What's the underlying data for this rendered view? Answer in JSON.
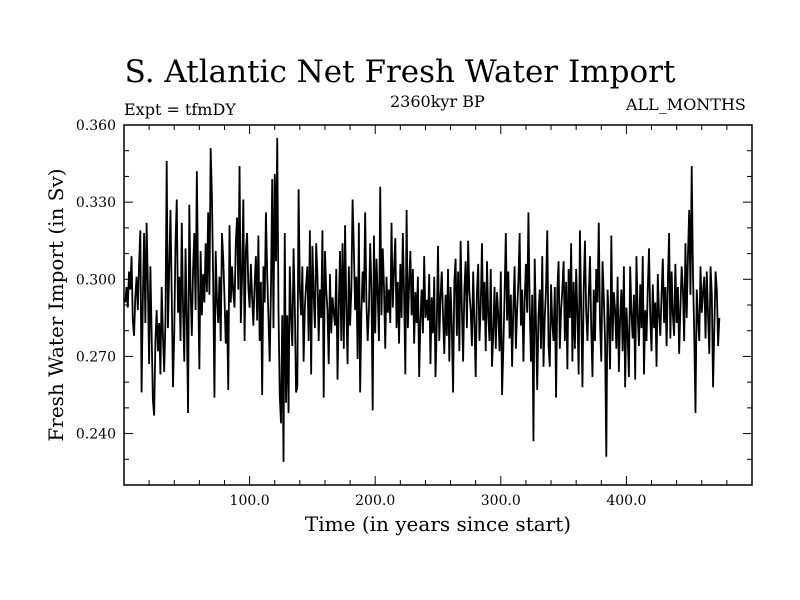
{
  "header": {
    "title": "S. Atlantic Net Fresh Water Import",
    "experiment": "Expt = tfmDY",
    "subtitle": "2360kyr BP",
    "period": "ALL_MONTHS"
  },
  "chart_data": {
    "type": "line",
    "title": "S. Atlantic Net Fresh Water Import",
    "xlabel": "Time (in years since start)",
    "ylabel": "Fresh Water Import (in Sv)",
    "xlim": [
      0,
      500
    ],
    "ylim": [
      0.22,
      0.36
    ],
    "x_ticks": [
      100.0,
      200.0,
      300.0,
      400.0
    ],
    "x_tick_labels": [
      "100.0",
      "200.0",
      "300.0",
      "400.0"
    ],
    "y_ticks": [
      0.24,
      0.27,
      0.3,
      0.33,
      0.36
    ],
    "y_tick_labels": [
      "0.240",
      "0.270",
      "0.300",
      "0.330",
      "0.360"
    ],
    "grid": false,
    "series": [
      {
        "name": "Net fresh water import",
        "color": "#000000",
        "x_start": 1,
        "x_step": 1,
        "values": [
          0.291,
          0.297,
          0.289,
          0.303,
          0.296,
          0.309,
          0.284,
          0.278,
          0.293,
          0.301,
          0.288,
          0.306,
          0.319,
          0.256,
          0.292,
          0.318,
          0.283,
          0.322,
          0.298,
          0.267,
          0.305,
          0.279,
          0.253,
          0.247,
          0.276,
          0.288,
          0.272,
          0.283,
          0.263,
          0.297,
          0.278,
          0.264,
          0.284,
          0.346,
          0.281,
          0.304,
          0.327,
          0.294,
          0.258,
          0.279,
          0.314,
          0.331,
          0.287,
          0.301,
          0.276,
          0.322,
          0.289,
          0.268,
          0.312,
          0.285,
          0.248,
          0.329,
          0.296,
          0.278,
          0.304,
          0.318,
          0.288,
          0.342,
          0.299,
          0.265,
          0.311,
          0.286,
          0.302,
          0.291,
          0.314,
          0.295,
          0.326,
          0.294,
          0.351,
          0.332,
          0.299,
          0.254,
          0.311,
          0.292,
          0.283,
          0.301,
          0.276,
          0.318,
          0.308,
          0.293,
          0.275,
          0.288,
          0.257,
          0.321,
          0.291,
          0.305,
          0.295,
          0.289,
          0.314,
          0.324,
          0.296,
          0.344,
          0.283,
          0.301,
          0.331,
          0.276,
          0.311,
          0.318,
          0.297,
          0.289,
          0.306,
          0.293,
          0.282,
          0.298,
          0.309,
          0.284,
          0.317,
          0.276,
          0.299,
          0.255,
          0.305,
          0.291,
          0.326,
          0.302,
          0.285,
          0.268,
          0.296,
          0.339,
          0.281,
          0.341,
          0.307,
          0.355,
          0.288,
          0.255,
          0.244,
          0.286,
          0.229,
          0.318,
          0.252,
          0.286,
          0.248,
          0.305,
          0.286,
          0.274,
          0.312,
          0.289,
          0.256,
          0.258,
          0.335,
          0.296,
          0.286,
          0.305,
          0.268,
          0.289,
          0.298,
          0.305,
          0.276,
          0.319,
          0.263,
          0.313,
          0.294,
          0.281,
          0.314,
          0.302,
          0.276,
          0.296,
          0.285,
          0.319,
          0.254,
          0.311,
          0.296,
          0.288,
          0.267,
          0.302,
          0.279,
          0.293,
          0.287,
          0.282,
          0.304,
          0.261,
          0.289,
          0.311,
          0.276,
          0.314,
          0.273,
          0.321,
          0.289,
          0.267,
          0.305,
          0.282,
          0.296,
          0.331,
          0.312,
          0.288,
          0.301,
          0.269,
          0.322,
          0.256,
          0.287,
          0.303,
          0.291,
          0.326,
          0.291,
          0.276,
          0.288,
          0.314,
          0.296,
          0.249,
          0.317,
          0.279,
          0.308,
          0.294,
          0.276,
          0.336,
          0.286,
          0.312,
          0.297,
          0.273,
          0.301,
          0.287,
          0.296,
          0.283,
          0.322,
          0.289,
          0.304,
          0.316,
          0.281,
          0.299,
          0.275,
          0.306,
          0.285,
          0.318,
          0.294,
          0.263,
          0.327,
          0.281,
          0.298,
          0.311,
          0.286,
          0.304,
          0.275,
          0.295,
          0.283,
          0.301,
          0.262,
          0.284,
          0.296,
          0.279,
          0.309,
          0.285,
          0.292,
          0.284,
          0.302,
          0.267,
          0.293,
          0.279,
          0.301,
          0.262,
          0.281,
          0.313,
          0.276,
          0.293,
          0.303,
          0.286,
          0.271,
          0.294,
          0.278,
          0.304,
          0.268,
          0.297,
          0.282,
          0.256,
          0.299,
          0.308,
          0.278,
          0.303,
          0.272,
          0.315,
          0.289,
          0.268,
          0.296,
          0.307,
          0.281,
          0.315,
          0.295,
          0.288,
          0.274,
          0.303,
          0.283,
          0.262,
          0.295,
          0.306,
          0.276,
          0.289,
          0.314,
          0.284,
          0.299,
          0.272,
          0.307,
          0.286,
          0.276,
          0.304,
          0.266,
          0.279,
          0.297,
          0.273,
          0.295,
          0.286,
          0.272,
          0.303,
          0.255,
          0.273,
          0.294,
          0.318,
          0.284,
          0.303,
          0.277,
          0.294,
          0.266,
          0.289,
          0.305,
          0.273,
          0.288,
          0.299,
          0.318,
          0.282,
          0.296,
          0.268,
          0.292,
          0.306,
          0.287,
          0.326,
          0.289,
          0.268,
          0.294,
          0.237,
          0.308,
          0.283,
          0.257,
          0.286,
          0.296,
          0.273,
          0.309,
          0.266,
          0.285,
          0.296,
          0.319,
          0.274,
          0.266,
          0.298,
          0.283,
          0.276,
          0.297,
          0.254,
          0.296,
          0.307,
          0.273,
          0.288,
          0.296,
          0.307,
          0.276,
          0.299,
          0.265,
          0.304,
          0.285,
          0.314,
          0.268,
          0.299,
          0.273,
          0.304,
          0.286,
          0.263,
          0.319,
          0.289,
          0.258,
          0.296,
          0.315,
          0.287,
          0.276,
          0.293,
          0.309,
          0.281,
          0.262,
          0.296,
          0.276,
          0.304,
          0.291,
          0.322,
          0.283,
          0.268,
          0.307,
          0.293,
          0.276,
          0.231,
          0.296,
          0.284,
          0.265,
          0.317,
          0.276,
          0.295,
          0.288,
          0.273,
          0.301,
          0.264,
          0.285,
          0.296,
          0.272,
          0.305,
          0.258,
          0.289,
          0.278,
          0.262,
          0.305,
          0.287,
          0.277,
          0.294,
          0.261,
          0.309,
          0.286,
          0.274,
          0.298,
          0.281,
          0.309,
          0.263,
          0.288,
          0.276,
          0.296,
          0.312,
          0.285,
          0.272,
          0.298,
          0.281,
          0.291,
          0.266,
          0.302,
          0.286,
          0.278,
          0.294,
          0.308,
          0.283,
          0.297,
          0.274,
          0.299,
          0.318,
          0.277,
          0.303,
          0.286,
          0.278,
          0.306,
          0.283,
          0.297,
          0.271,
          0.289,
          0.305,
          0.296,
          0.276,
          0.314,
          0.285,
          0.309,
          0.327,
          0.294,
          0.344,
          0.302,
          0.279,
          0.248,
          0.296,
          0.285,
          0.276,
          0.305,
          0.287,
          0.295,
          0.301,
          0.277,
          0.303,
          0.286,
          0.271,
          0.305,
          0.294,
          0.258,
          0.281,
          0.303,
          0.296,
          0.274,
          0.285
        ]
      }
    ]
  }
}
